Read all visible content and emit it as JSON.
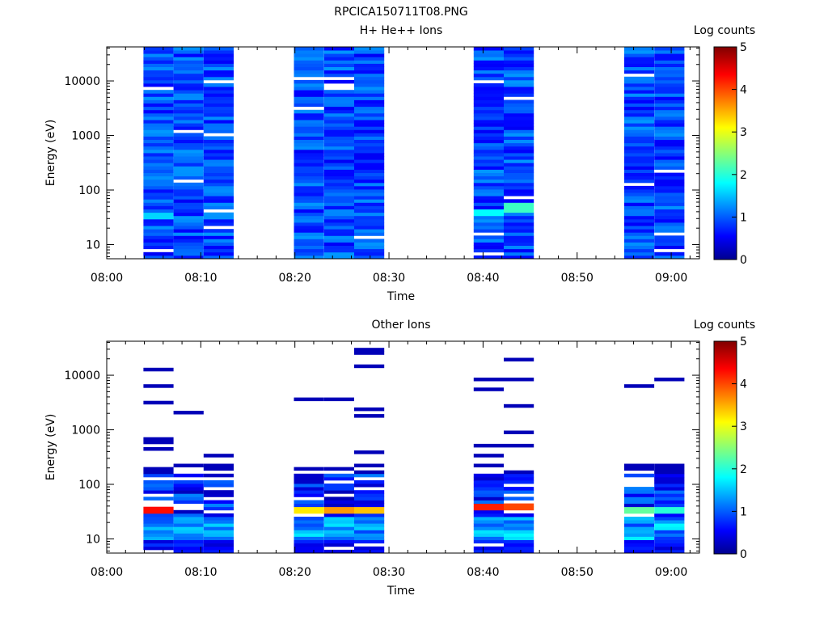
{
  "figure_title": "RPCICA150711T08.PNG",
  "chart_data": [
    {
      "type": "heatmap",
      "title": "H+ He++ Ions",
      "xlabel": "Time",
      "ylabel": "Energy (eV)",
      "colorbar_label": "Log counts",
      "y_scale": "log",
      "ylim": [
        5.5,
        42000
      ],
      "x_range": [
        "08:00",
        "09:03"
      ],
      "x_ticks": [
        "08:00",
        "08:10",
        "08:20",
        "08:30",
        "08:40",
        "08:50",
        "09:00"
      ],
      "y_ticks": [
        "10",
        "100",
        "1000",
        "10000"
      ],
      "colorbar_ticks": [
        "0",
        "1",
        "2",
        "3",
        "4",
        "5"
      ],
      "colorbar_range": [
        0,
        5
      ],
      "colormap": [
        "#00008f",
        "#0000ff",
        "#00ffff",
        "#ffff00",
        "#ff0000",
        "#800000"
      ],
      "time_columns": [
        {
          "start": "08:03.9",
          "end": "08:07.1"
        },
        {
          "start": "08:07.1",
          "end": "08:10.3"
        },
        {
          "start": "08:10.3",
          "end": "08:13.5"
        },
        {
          "start": "08:19.9",
          "end": "08:23.1"
        },
        {
          "start": "08:23.1",
          "end": "08:26.3"
        },
        {
          "start": "08:26.3",
          "end": "08:29.5"
        },
        {
          "start": "08:39.0",
          "end": "08:42.2"
        },
        {
          "start": "08:42.2",
          "end": "08:45.4"
        },
        {
          "start": "08:55.0",
          "end": "08:58.2"
        },
        {
          "start": "08:58.2",
          "end": "09:01.4"
        }
      ],
      "notable_cells": [
        {
          "time": "08:05",
          "energy_range": [
            30,
            40
          ],
          "log_counts": 1.6
        },
        {
          "time": "08:41",
          "energy_range": [
            35,
            45
          ],
          "log_counts": 1.8
        },
        {
          "time": "08:44",
          "energy_range": [
            40,
            60
          ],
          "log_counts": 2.1
        }
      ]
    },
    {
      "type": "heatmap",
      "title": "Other Ions",
      "xlabel": "Time",
      "ylabel": "Energy (eV)",
      "colorbar_label": "Log counts",
      "y_scale": "log",
      "ylim": [
        5.5,
        42000
      ],
      "x_range": [
        "08:00",
        "09:03"
      ],
      "x_ticks": [
        "08:00",
        "08:10",
        "08:20",
        "08:30",
        "08:40",
        "08:50",
        "09:00"
      ],
      "y_ticks": [
        "10",
        "100",
        "1000",
        "10000"
      ],
      "colorbar_ticks": [
        "0",
        "1",
        "2",
        "3",
        "4",
        "5"
      ],
      "colorbar_range": [
        0,
        5
      ],
      "colormap": [
        "#00008f",
        "#0000ff",
        "#00ffff",
        "#ffff00",
        "#ff0000",
        "#800000"
      ],
      "time_columns": [
        {
          "start": "08:03.9",
          "end": "08:07.1"
        },
        {
          "start": "08:07.1",
          "end": "08:10.3"
        },
        {
          "start": "08:10.3",
          "end": "08:13.5"
        },
        {
          "start": "08:19.9",
          "end": "08:23.1"
        },
        {
          "start": "08:23.1",
          "end": "08:26.3"
        },
        {
          "start": "08:26.3",
          "end": "08:29.5"
        },
        {
          "start": "08:39.0",
          "end": "08:42.2"
        },
        {
          "start": "08:42.2",
          "end": "08:45.4"
        },
        {
          "start": "08:55.0",
          "end": "08:58.2"
        },
        {
          "start": "08:58.2",
          "end": "09:01.4"
        }
      ],
      "notable_cells": [
        {
          "time": "08:05",
          "energy_range": [
            30,
            40
          ],
          "log_counts": 4.3
        },
        {
          "time": "08:21",
          "energy_range": [
            30,
            40
          ],
          "log_counts": 3.2
        },
        {
          "time": "08:24",
          "energy_range": [
            30,
            40
          ],
          "log_counts": 3.6
        },
        {
          "time": "08:27",
          "energy_range": [
            30,
            40
          ],
          "log_counts": 3.4
        },
        {
          "time": "08:41",
          "energy_range": [
            35,
            45
          ],
          "log_counts": 4.2
        },
        {
          "time": "08:44",
          "energy_range": [
            35,
            45
          ],
          "log_counts": 4.0
        },
        {
          "time": "08:57",
          "energy_range": [
            30,
            40
          ],
          "log_counts": 2.3
        },
        {
          "time": "09:00",
          "energy_range": [
            30,
            40
          ],
          "log_counts": 2.0
        }
      ]
    }
  ]
}
